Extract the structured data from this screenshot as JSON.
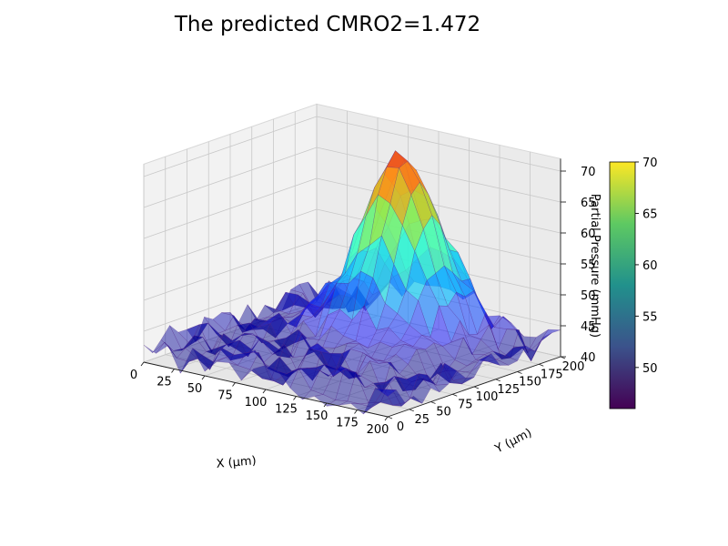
{
  "chart_data": {
    "type": "surface3d",
    "title": "The predicted CMRO2=1.472",
    "xlabel": "X (μm)",
    "ylabel": "Y (μm)",
    "zlabel": "Partial Pressure (mmHg)",
    "x_ticks": [
      0,
      25,
      50,
      75,
      100,
      125,
      150,
      175,
      200
    ],
    "y_ticks": [
      0,
      25,
      50,
      75,
      100,
      125,
      150,
      175,
      200
    ],
    "z_ticks": [
      40,
      45,
      50,
      55,
      60,
      65,
      70
    ],
    "xlim": [
      0,
      200
    ],
    "ylim": [
      0,
      200
    ],
    "zlim": [
      40,
      72
    ],
    "surface": {
      "baseline": 42,
      "peak_value": 71,
      "peak_x": 105,
      "peak_y": 150,
      "spread": 28,
      "noise_amplitude": 2.5
    },
    "colorbar": {
      "colormap": "viridis",
      "min": 46,
      "max": 70,
      "ticks": [
        50,
        55,
        60,
        65,
        70
      ]
    }
  }
}
